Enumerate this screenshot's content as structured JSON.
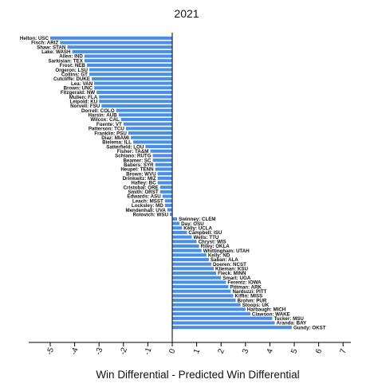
{
  "chart_data": {
    "type": "bar",
    "orientation": "horizontal",
    "title": "2021",
    "xlabel": "Win Differential - Predicted Win Differential",
    "ylabel": "",
    "xlim": [
      -5.5,
      7.0
    ],
    "xticks": [
      -5,
      -4,
      -3,
      -2,
      -1,
      0,
      1,
      2,
      3,
      4,
      5,
      6,
      7
    ],
    "bar_color": "#4a8fe7",
    "grid": false,
    "legend": "none",
    "categories": [
      "Helton: USC",
      "Fisch: ARIZ",
      "Shaw: STAN",
      "Lake: WASH",
      "Allen: IND",
      "Sarkisian: TEX",
      "Frost: NEB",
      "Orgeron: LSU",
      "Collins: GT",
      "Cutcliffe: DUKE",
      "Lea: VAN",
      "Brown: UNC",
      "Fitzgerald: NW",
      "Mullen: FLA",
      "Leipold: KU",
      "Norvell: FSU",
      "Dorrell: COLO",
      "Harsin: AUB",
      "Wilcox: CAL",
      "Fuente: VT",
      "Patterson: TCU",
      "Franklin: PSU",
      "Diaz: MIAMI",
      "Bielema: ILL",
      "Satterfield: LOU",
      "Fisher: TA&M",
      "Schiano: RUTG",
      "Beamer: SC",
      "Babers: SYR",
      "Heupel: TENN",
      "Brown: WVU",
      "Drinkwitz: MIZ",
      "Hafley: BC",
      "Cristobal: ORE",
      "Smith: ORST",
      "Edwards: ASU",
      "Leach: MSST",
      "Locksley: MD",
      "Mendenhall: UVA",
      "Rolovich: WSU",
      "Swinney: CLEM",
      "Day: OSU",
      "Kelly: UCLA",
      "Campbell: ISU",
      "Wells: TTU",
      "Chryst: WIS",
      "Riley: OKLA",
      "Whittingham: UTAH",
      "Kelly: ND",
      "Saban: ALA",
      "Doeren: NCST",
      "Klieman: KSU",
      "Fleck: MINN",
      "Smart: UGA",
      "Ferentz: IOWA",
      "Pittman: ARK",
      "Narduzzi: PITT",
      "Kiffin: MISS",
      "Brohm: PUR",
      "Stoops: UK",
      "Harbaugh: MICH",
      "Clawson: WAKE",
      "Tucker: MSU",
      "Aranda: BAY",
      "Gundy: OKST"
    ],
    "values": [
      -5.0,
      -4.6,
      -4.3,
      -4.1,
      -3.6,
      -3.6,
      -3.5,
      -3.4,
      -3.4,
      -3.3,
      -3.2,
      -3.2,
      -3.1,
      -3.0,
      -3.0,
      -2.9,
      -2.3,
      -2.2,
      -2.1,
      -2.0,
      -1.9,
      -1.8,
      -1.7,
      -1.6,
      -1.1,
      -0.9,
      -0.8,
      -0.8,
      -0.7,
      -0.7,
      -0.6,
      -0.6,
      -0.6,
      -0.5,
      -0.5,
      -0.4,
      -0.3,
      -0.3,
      -0.2,
      -0.1,
      0.2,
      0.3,
      0.4,
      0.6,
      0.8,
      1.0,
      1.1,
      1.2,
      1.4,
      1.5,
      1.6,
      1.7,
      1.8,
      2.0,
      2.2,
      2.3,
      2.4,
      2.5,
      2.6,
      2.8,
      3.0,
      3.2,
      4.1,
      4.2,
      4.9
    ]
  }
}
